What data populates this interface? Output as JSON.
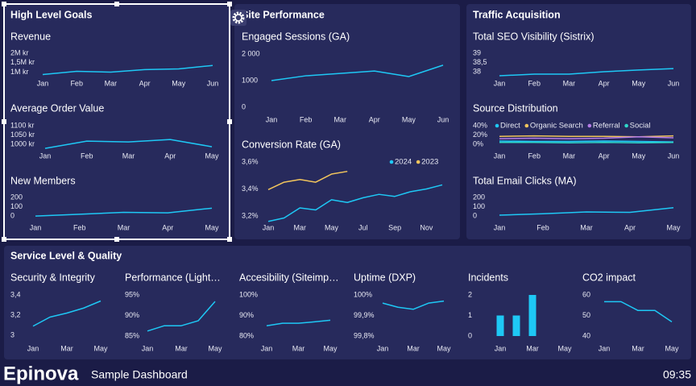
{
  "panels": [
    {
      "title": "High Level Goals"
    },
    {
      "title": "Site Performance"
    },
    {
      "title": "Traffic Acquisition"
    },
    {
      "title": "Service Level & Quality"
    }
  ],
  "footer": {
    "brand": "Epinova",
    "subtitle": "Sample Dashboard",
    "time": "09:35"
  },
  "chart_data": [
    {
      "type": "line",
      "title": "Revenue",
      "categories": [
        "Jan",
        "Feb",
        "Mar",
        "Apr",
        "May",
        "Jun"
      ],
      "values": [
        870000,
        1040000,
        1000000,
        1130000,
        1170000,
        1350000
      ],
      "color": "#1ec8f5",
      "ylim": [
        850000,
        2000000
      ],
      "yticks": [
        {
          "value": 1000000,
          "label": "1M kr"
        },
        {
          "value": 1500000,
          "label": "1,5M kr"
        },
        {
          "value": 2000000,
          "label": "2M kr"
        }
      ]
    },
    {
      "type": "line",
      "title": "Average Order Value",
      "categories": [
        "Jan",
        "Feb",
        "Mar",
        "Apr",
        "May"
      ],
      "values": [
        978,
        1017,
        1013,
        1026,
        987
      ],
      "color": "#1ec8f5",
      "ylim": [
        970,
        1100
      ],
      "yticks": [
        {
          "value": 1000,
          "label": "1000 kr"
        },
        {
          "value": 1050,
          "label": "1050 kr"
        },
        {
          "value": 1100,
          "label": "1100 kr"
        }
      ]
    },
    {
      "type": "line",
      "title": "New Members",
      "categories": [
        "Jan",
        "Feb",
        "Mar",
        "Apr",
        "May"
      ],
      "values": [
        0,
        20,
        40,
        35,
        85
      ],
      "color": "#1ec8f5",
      "ylim": [
        -20,
        200
      ],
      "yticks": [
        0,
        100,
        200
      ]
    },
    {
      "type": "line",
      "title": "Engaged Sessions (GA)",
      "categories": [
        "Jan",
        "Feb",
        "Mar",
        "Apr",
        "May",
        "Jun"
      ],
      "values": [
        1000,
        1180,
        1270,
        1360,
        1150,
        1580
      ],
      "color": "#1ec8f5",
      "ylim": [
        0,
        2000
      ],
      "yticks": [
        0,
        1000,
        {
          "value": 2000,
          "label": "2 000"
        }
      ]
    },
    {
      "type": "line",
      "title": "Conversion Rate (GA)",
      "categories": [
        "Jan",
        null,
        "Mar",
        null,
        "May",
        null,
        "Jul",
        null,
        "Sep",
        null,
        "Nov",
        null
      ],
      "series": [
        {
          "name": "2024",
          "color": "#1ec8f5",
          "values": [
            3.16,
            3.185,
            3.26,
            3.245,
            3.32,
            3.3,
            3.335,
            3.36,
            3.345,
            3.38,
            3.4,
            3.43
          ]
        },
        {
          "name": "2023",
          "color": "#f2c55c",
          "values": [
            3.395,
            3.45,
            3.47,
            3.45,
            3.51,
            3.53,
            null,
            null,
            null,
            null,
            null,
            null
          ]
        }
      ],
      "ylim": [
        3.15,
        3.62
      ],
      "yticks": [
        {
          "value": 3.2,
          "label": "3,2%"
        },
        {
          "value": 3.4,
          "label": "3,4%"
        },
        {
          "value": 3.6,
          "label": "3,6%"
        }
      ]
    },
    {
      "type": "line",
      "title": "Total SEO Visibility (Sistrix)",
      "categories": [
        "Jan",
        "Feb",
        "Mar",
        "Apr",
        "May",
        "Jun"
      ],
      "values": [
        37.78,
        37.87,
        37.87,
        38.0,
        38.09,
        38.17
      ],
      "color": "#1ec8f5",
      "ylim": [
        37.7,
        39
      ],
      "yticks": [
        38,
        {
          "value": 38.5,
          "label": "38,5"
        },
        39
      ]
    },
    {
      "type": "line",
      "title": "Source Distribution",
      "categories": [
        "Jan",
        "Feb",
        "Mar",
        "Apr",
        "May",
        "Jun"
      ],
      "series": [
        {
          "name": "Direct",
          "color": "#1ec8f5",
          "values": [
            7,
            6,
            6,
            7,
            6,
            5
          ]
        },
        {
          "name": "Organic Search",
          "color": "#f2c55c",
          "values": [
            17,
            18,
            17,
            17,
            16,
            18
          ]
        },
        {
          "name": "Referral",
          "color": "#b57ce8",
          "values": [
            12,
            13,
            12,
            13,
            16,
            14
          ]
        },
        {
          "name": "Social",
          "color": "#2fd6c9",
          "values": [
            4,
            4,
            3,
            4,
            3,
            4
          ]
        }
      ],
      "ylim": [
        0,
        40
      ],
      "yticks": [
        {
          "value": 0,
          "label": "0%"
        },
        {
          "value": 20,
          "label": "20%"
        },
        {
          "value": 40,
          "label": "40%"
        }
      ]
    },
    {
      "type": "line",
      "title": "Total Email Clicks (MA)",
      "categories": [
        "Jan",
        "Feb",
        "Mar",
        "Apr",
        "May"
      ],
      "values": [
        10,
        25,
        45,
        40,
        90
      ],
      "color": "#1ec8f5",
      "ylim": [
        -20,
        200
      ],
      "yticks": [
        0,
        100,
        200
      ]
    },
    {
      "type": "line",
      "title": "Security & Integrity",
      "categories": [
        "Jan",
        null,
        "Mar",
        null,
        "May"
      ],
      "values": [
        3.09,
        3.18,
        3.22,
        3.27,
        3.34
      ],
      "color": "#1ec8f5",
      "ylim": [
        2.98,
        3.42
      ],
      "yticks": [
        3,
        {
          "value": 3.2,
          "label": "3,2"
        },
        {
          "value": 3.4,
          "label": "3,4"
        }
      ]
    },
    {
      "type": "line",
      "title": "Performance (Light…",
      "categories": [
        "Jan",
        null,
        "Mar",
        null,
        "May"
      ],
      "values": [
        86.2,
        87.5,
        87.5,
        88.7,
        93.4
      ],
      "color": "#1ec8f5",
      "ylim": [
        84.5,
        95.5
      ],
      "yticks": [
        {
          "value": 85,
          "label": "85%"
        },
        {
          "value": 90,
          "label": "90%"
        },
        {
          "value": 95,
          "label": "95%"
        }
      ]
    },
    {
      "type": "line",
      "title": "Accesibility (Siteimp…",
      "categories": [
        "Jan",
        null,
        "Mar",
        null,
        "May"
      ],
      "values": [
        85,
        86.2,
        86.2,
        86.9,
        87.7
      ],
      "color": "#1ec8f5",
      "ylim": [
        79,
        100
      ],
      "yticks": [
        {
          "value": 80,
          "label": "80%"
        },
        {
          "value": 90,
          "label": "90%"
        },
        {
          "value": 100,
          "label": "100%"
        }
      ]
    },
    {
      "type": "line",
      "title": "Uptime (DXP)",
      "categories": [
        "Jan",
        null,
        "Mar",
        null,
        "May"
      ],
      "values": [
        99.96,
        99.94,
        99.93,
        99.96,
        99.97
      ],
      "color": "#1ec8f5",
      "ylim": [
        99.79,
        100.01
      ],
      "yticks": [
        {
          "value": 99.8,
          "label": "99,8%"
        },
        {
          "value": 99.9,
          "label": "99,9%"
        },
        {
          "value": 100,
          "label": "100%"
        }
      ]
    },
    {
      "type": "bar",
      "title": "Incidents",
      "categories": [
        "Jan",
        null,
        "Mar",
        null,
        "May"
      ],
      "values": [
        1,
        1,
        2,
        0,
        0
      ],
      "color": "#1ec8f5",
      "ylim": [
        0,
        2
      ],
      "yticks": [
        0,
        1,
        2
      ]
    },
    {
      "type": "line",
      "title": "CO2 impact",
      "categories": [
        "Jan",
        null,
        "Mar",
        null,
        "May"
      ],
      "values": [
        56.7,
        56.7,
        52.4,
        52.4,
        46.9
      ],
      "color": "#1ec8f5",
      "ylim": [
        38,
        61
      ],
      "yticks": [
        40,
        50,
        60
      ]
    }
  ]
}
